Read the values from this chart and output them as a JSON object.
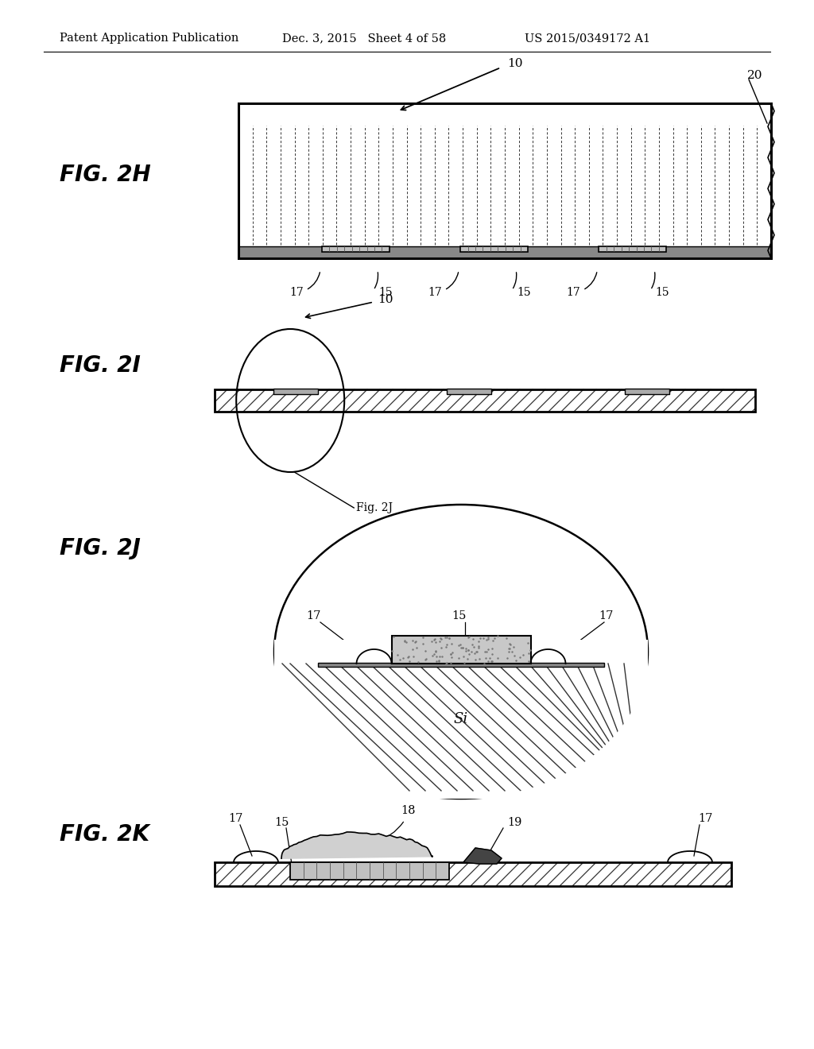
{
  "header_left": "Patent Application Publication",
  "header_mid": "Dec. 3, 2015   Sheet 4 of 58",
  "header_right": "US 2015/0349172 A1",
  "bg_color": "#ffffff"
}
